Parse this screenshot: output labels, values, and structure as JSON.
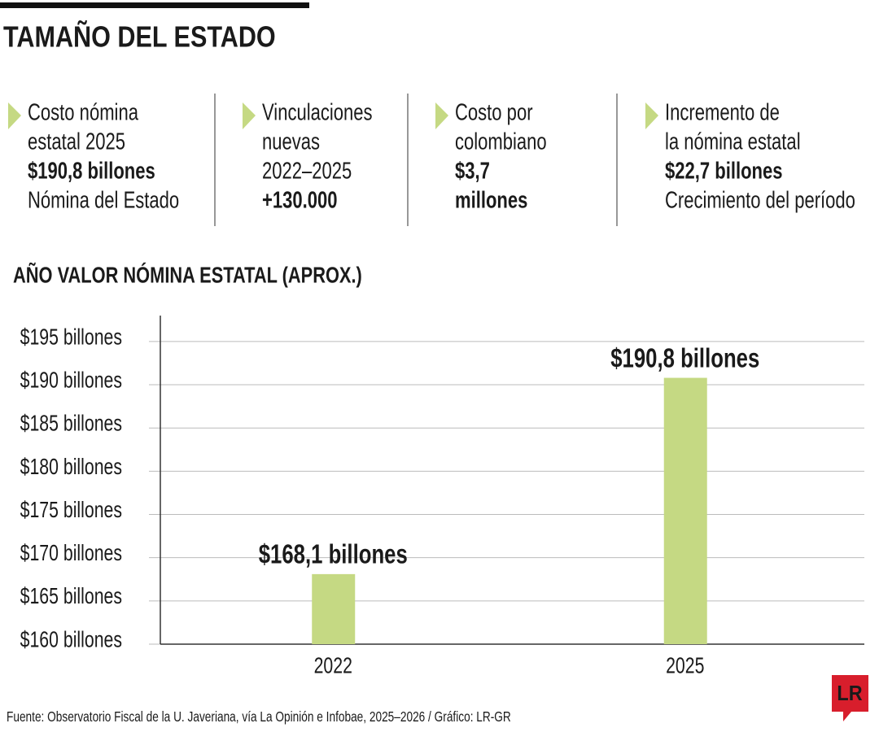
{
  "header": {
    "title": "TAMAÑO DEL ESTADO"
  },
  "stats": [
    {
      "lines": [
        "Costo nómina",
        "estatal 2025",
        "$190,8 billones",
        "Nómina del Estado"
      ]
    },
    {
      "lines": [
        "Vinculaciones",
        "nuevas",
        "2022–2025",
        "+130.000"
      ]
    },
    {
      "lines": [
        "Costo por",
        "colombiano",
        "$3,7",
        "millones"
      ]
    },
    {
      "lines": [
        "Incremento de",
        "la nómina estatal",
        "$22,7 billones",
        "Crecimiento del período"
      ]
    }
  ],
  "chart_data": {
    "type": "bar",
    "title": "AÑO VALOR NÓMINA ESTATAL (APROX.)",
    "categories": [
      "2022",
      "2025"
    ],
    "values": [
      168.1,
      190.8
    ],
    "value_labels": [
      "$168,1 billones",
      "$190,8 billones"
    ],
    "color": "#c5d983",
    "ylim": [
      160,
      198
    ],
    "yticks": [
      {
        "value": 160,
        "label": "$160 billones"
      },
      {
        "value": 165,
        "label": "$165 billones"
      },
      {
        "value": 170,
        "label": "$170 billones"
      },
      {
        "value": 175,
        "label": "$175 billones"
      },
      {
        "value": 180,
        "label": "$180 billones"
      },
      {
        "value": 185,
        "label": "$185 billones"
      },
      {
        "value": 190,
        "label": "$190 billones"
      },
      {
        "value": 195,
        "label": "$195 billones"
      }
    ],
    "grid": true
  },
  "footer": {
    "source": "Fuente: Observatorio Fiscal de la U. Javeriana, vía La Opinión e Infobae, 2025–2026 / Gráfico: LR-GR",
    "logo": "LR"
  }
}
